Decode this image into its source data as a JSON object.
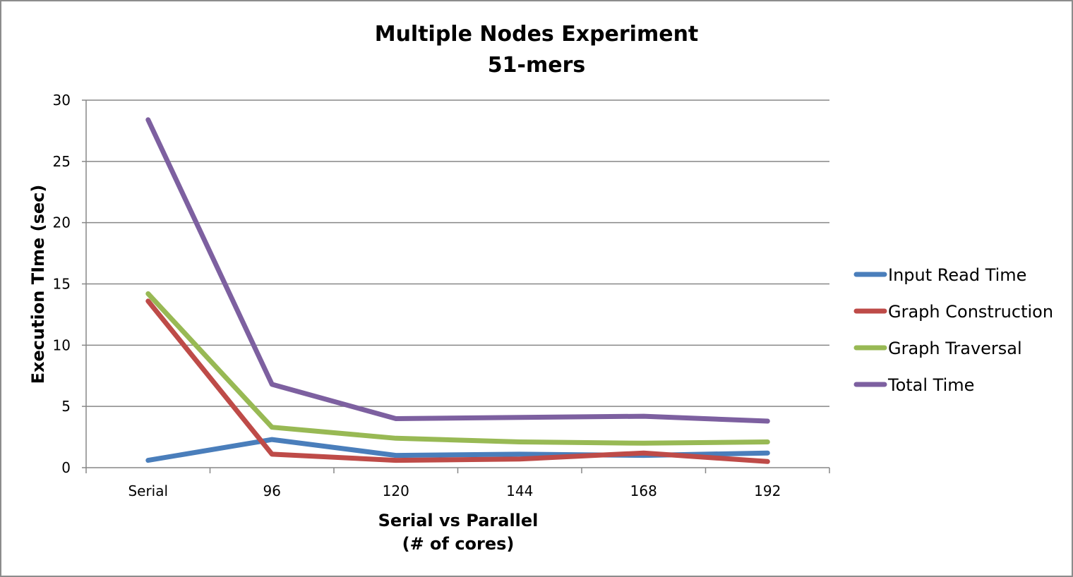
{
  "chart_data": {
    "type": "line",
    "title": "Multiple Nodes Experiment",
    "subtitle": "51-mers",
    "xlabel": "Serial vs Parallel",
    "xlabel_line2": "(# of cores)",
    "ylabel": "Execution TIme (sec)",
    "categories": [
      "Serial",
      "96",
      "120",
      "144",
      "168",
      "192"
    ],
    "ylim": [
      0,
      30
    ],
    "yticks": [
      0,
      5,
      10,
      15,
      20,
      25,
      30
    ],
    "grid": true,
    "legend_position": "right",
    "series": [
      {
        "name": "Input Read Time",
        "color": "#4a7ebb",
        "values": [
          0.6,
          2.3,
          1.0,
          1.1,
          1.0,
          1.2
        ]
      },
      {
        "name": "Graph Construction",
        "color": "#be4b48",
        "values": [
          13.6,
          1.1,
          0.6,
          0.7,
          1.2,
          0.5
        ]
      },
      {
        "name": "Graph Traversal",
        "color": "#98b954",
        "values": [
          14.2,
          3.3,
          2.4,
          2.1,
          2.0,
          2.1
        ]
      },
      {
        "name": "Total Time",
        "color": "#7d60a0",
        "values": [
          28.4,
          6.8,
          4.0,
          4.1,
          4.2,
          3.8
        ]
      }
    ]
  }
}
